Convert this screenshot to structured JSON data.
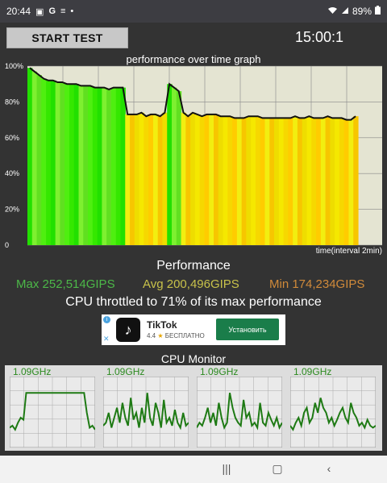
{
  "status_bar": {
    "time": "20:44",
    "left_icons": [
      "gallery-icon",
      "google-icon",
      "filter-icon",
      "dot-icon"
    ],
    "battery": "89%"
  },
  "controls": {
    "start_label": "START TEST",
    "timer": "15:00:1"
  },
  "graph": {
    "title": "performance over time graph",
    "x_axis_label": "time(interval 2min)",
    "y_tick_labels": [
      "100%",
      "80%",
      "60%",
      "40%",
      "20%",
      "0"
    ]
  },
  "performance": {
    "heading": "Performance",
    "max": "Max 252,514GIPS",
    "avg": "Avg 200,496GIPS",
    "min": "Min 174,234GIPS",
    "throttle_text": "CPU throttled to 71% of its max performance",
    "colors": {
      "max": "#4cb848",
      "avg": "#c8c24a",
      "min": "#d08a3a"
    }
  },
  "ad": {
    "app_name": "TikTok",
    "rating": "4.4",
    "price": "БЕСПЛАТНО",
    "install_label": "Установить"
  },
  "cpu_monitor": {
    "title": "CPU Monitor",
    "cores": [
      {
        "freq": "1.09GHz"
      },
      {
        "freq": "1.09GHz"
      },
      {
        "freq": "1.09GHz"
      },
      {
        "freq": "1.09GHz"
      }
    ]
  },
  "chart_data": {
    "type": "area",
    "title": "performance over time graph",
    "xlabel": "time(interval 2min)",
    "ylabel": "",
    "ylim": [
      0,
      100
    ],
    "y_ticks": [
      0,
      20,
      40,
      60,
      80,
      100
    ],
    "grid": true,
    "series": [
      {
        "values": [
          99,
          97,
          95,
          93,
          92,
          92,
          91,
          91,
          90,
          90,
          90,
          89,
          89,
          89,
          88,
          88,
          88,
          87,
          88,
          88,
          88,
          73,
          73,
          73,
          74,
          72,
          73,
          73,
          72,
          74,
          90,
          88,
          86,
          74,
          72,
          74,
          73,
          72,
          73,
          73,
          73,
          72,
          72,
          72,
          71,
          71,
          71,
          72,
          72,
          72,
          71,
          71,
          71,
          71,
          71,
          71,
          71,
          72,
          71,
          71,
          72,
          71,
          71,
          71,
          72,
          71,
          71,
          71,
          70,
          70,
          72
        ],
        "colors": [
          "green",
          "green",
          "green",
          "green",
          "green",
          "green",
          "green",
          "green",
          "green",
          "green",
          "green",
          "green",
          "green",
          "green",
          "green",
          "green",
          "green",
          "green",
          "green",
          "green",
          "green",
          "yellow",
          "yellow",
          "yellow",
          "yellow",
          "yellow",
          "yellow",
          "yellow",
          "yellow",
          "yellow",
          "green",
          "green",
          "green",
          "yellow",
          "yellow",
          "yellow",
          "yellow",
          "yellow",
          "yellow",
          "yellow",
          "yellow",
          "yellow",
          "yellow",
          "yellow",
          "yellow",
          "yellow",
          "yellow",
          "yellow",
          "yellow",
          "yellow",
          "yellow",
          "yellow",
          "yellow",
          "yellow",
          "yellow",
          "yellow",
          "yellow",
          "yellow",
          "yellow",
          "yellow",
          "yellow",
          "yellow",
          "yellow",
          "yellow",
          "yellow",
          "yellow",
          "yellow",
          "yellow",
          "yellow",
          "yellow",
          "yellow"
        ]
      }
    ],
    "cpu_traces": [
      [
        20,
        22,
        18,
        25,
        30,
        28,
        55,
        55,
        55,
        55,
        55,
        55,
        55,
        55,
        55,
        55,
        55,
        55,
        55,
        55,
        55,
        55,
        55,
        55,
        55,
        55,
        55,
        55,
        35,
        20,
        22,
        18
      ],
      [
        22,
        25,
        35,
        20,
        30,
        40,
        25,
        45,
        30,
        22,
        50,
        28,
        35,
        20,
        40,
        25,
        55,
        30,
        22,
        45,
        35,
        20,
        48,
        25,
        30,
        22,
        38,
        25,
        20,
        35,
        22,
        25
      ],
      [
        20,
        25,
        22,
        30,
        40,
        25,
        35,
        22,
        45,
        30,
        20,
        25,
        55,
        40,
        30,
        25,
        22,
        48,
        30,
        35,
        22,
        25,
        20,
        45,
        25,
        22,
        35,
        28,
        22,
        30,
        20,
        25
      ],
      [
        22,
        18,
        25,
        30,
        22,
        35,
        40,
        25,
        30,
        45,
        35,
        50,
        40,
        35,
        25,
        30,
        22,
        28,
        35,
        40,
        30,
        25,
        45,
        35,
        30,
        22,
        25,
        20,
        28,
        22,
        20,
        22
      ]
    ]
  }
}
